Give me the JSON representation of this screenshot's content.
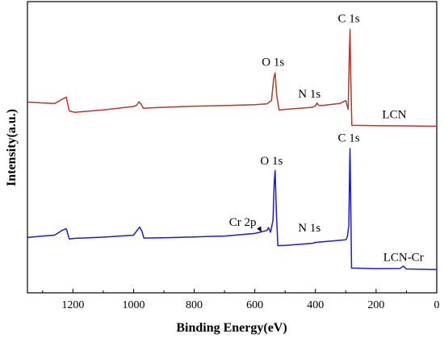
{
  "chart_data": {
    "type": "line",
    "title": "",
    "xlabel": "Binding Energy(eV)",
    "ylabel": "Intensity(a.u.)",
    "xlim": [
      1350,
      0
    ],
    "x_reversed": true,
    "ylim": [
      0,
      100
    ],
    "y_ticks_shown": false,
    "grid": false,
    "x_ticks": [
      1200,
      1000,
      800,
      600,
      400,
      200,
      0
    ],
    "x_tick_labels": [
      "1200",
      "1000",
      "800",
      "600",
      "400",
      "200",
      "0"
    ],
    "series": [
      {
        "name": "LCN",
        "color": "#b03a2e",
        "points": [
          [
            1350,
            65.5
          ],
          [
            1300,
            65.2
          ],
          [
            1260,
            65.0
          ],
          [
            1235,
            66.5
          ],
          [
            1222,
            67.2
          ],
          [
            1212,
            62.5
          ],
          [
            1195,
            62.0
          ],
          [
            1100,
            62.8
          ],
          [
            1000,
            64.0
          ],
          [
            990,
            64.4
          ],
          [
            982,
            65.6
          ],
          [
            975,
            64.8
          ],
          [
            968,
            63.4
          ],
          [
            900,
            63.7
          ],
          [
            800,
            64.1
          ],
          [
            700,
            64.3
          ],
          [
            600,
            64.6
          ],
          [
            560,
            64.9
          ],
          [
            545,
            66.0
          ],
          [
            538,
            73.5
          ],
          [
            533,
            75.5
          ],
          [
            528,
            68.0
          ],
          [
            520,
            62.8
          ],
          [
            500,
            63.0
          ],
          [
            410,
            63.7
          ],
          [
            400,
            64.2
          ],
          [
            395,
            65.2
          ],
          [
            390,
            64.4
          ],
          [
            380,
            64.3
          ],
          [
            320,
            65.0
          ],
          [
            300,
            66.0
          ],
          [
            292,
            63.0
          ],
          [
            288,
            83.0
          ],
          [
            286,
            90.5
          ],
          [
            284,
            77.0
          ],
          [
            280,
            57.5
          ],
          [
            200,
            57.4
          ],
          [
            100,
            57.3
          ],
          [
            0,
            57.2
          ]
        ]
      },
      {
        "name": "LCN-Cr",
        "color": "#1c1cc8",
        "points": [
          [
            1350,
            19.0
          ],
          [
            1300,
            19.5
          ],
          [
            1260,
            19.8
          ],
          [
            1235,
            21.5
          ],
          [
            1222,
            22.0
          ],
          [
            1212,
            18.5
          ],
          [
            1195,
            18.7
          ],
          [
            1100,
            19.1
          ],
          [
            1000,
            19.8
          ],
          [
            990,
            21.2
          ],
          [
            980,
            22.6
          ],
          [
            972,
            21.0
          ],
          [
            966,
            18.8
          ],
          [
            900,
            18.9
          ],
          [
            800,
            19.2
          ],
          [
            700,
            19.5
          ],
          [
            600,
            20.4
          ],
          [
            560,
            21.4
          ],
          [
            555,
            22.4
          ],
          [
            548,
            20.8
          ],
          [
            540,
            25.0
          ],
          [
            536,
            38.0
          ],
          [
            533,
            42.0
          ],
          [
            529,
            28.0
          ],
          [
            524,
            16.2
          ],
          [
            500,
            16.3
          ],
          [
            410,
            17.0
          ],
          [
            400,
            17.3
          ],
          [
            300,
            18.2
          ],
          [
            295,
            19.2
          ],
          [
            290,
            23.0
          ],
          [
            287,
            45.0
          ],
          [
            286,
            49.5
          ],
          [
            284,
            34.0
          ],
          [
            281,
            8.5
          ],
          [
            200,
            8.3
          ],
          [
            120,
            8.4
          ],
          [
            110,
            9.2
          ],
          [
            100,
            8.2
          ],
          [
            0,
            8.0
          ]
        ]
      }
    ],
    "annotations": [
      {
        "text": "C 1s",
        "x": 290,
        "y": 93,
        "series": "LCN"
      },
      {
        "text": "O 1s",
        "x": 540,
        "y": 78,
        "series": "LCN"
      },
      {
        "text": "N 1s",
        "x": 420,
        "y": 67,
        "series": "LCN"
      },
      {
        "text": "LCN",
        "x": 140,
        "y": 60,
        "series": "LCN"
      },
      {
        "text": "C 1s",
        "x": 290,
        "y": 52,
        "series": "LCN-Cr"
      },
      {
        "text": "O 1s",
        "x": 545,
        "y": 44,
        "series": "LCN-Cr"
      },
      {
        "text": "N 1s",
        "x": 420,
        "y": 21,
        "series": "LCN-Cr"
      },
      {
        "text": "LCN-Cr",
        "x": 110,
        "y": 11,
        "series": "LCN-Cr"
      },
      {
        "text": "Cr 2p",
        "x": 640,
        "y": 23,
        "series": "LCN-Cr",
        "arrow_to": [
          578,
          21
        ]
      }
    ]
  }
}
